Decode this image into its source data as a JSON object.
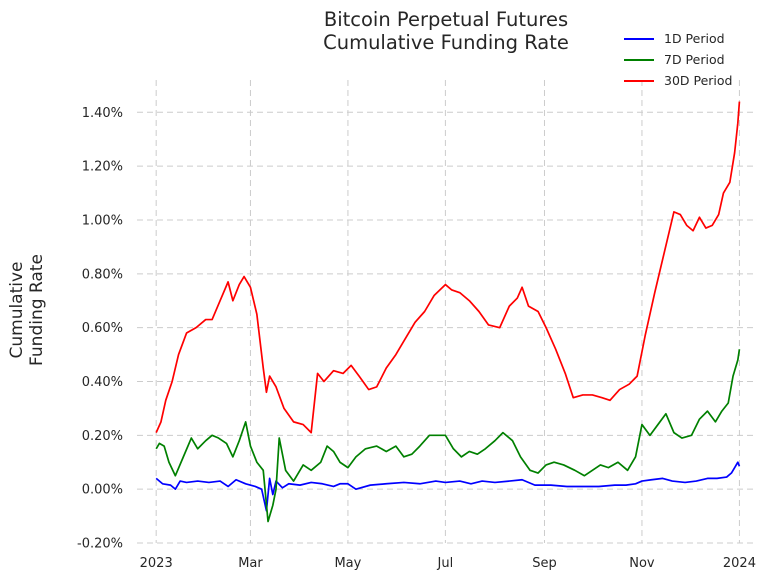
{
  "chart_data": {
    "type": "line",
    "title": [
      "Bitcoin Perpetual Futures",
      "Cumulative Funding Rate"
    ],
    "ylabel": [
      "Cumulative",
      "Funding Rate"
    ],
    "xlabel": "",
    "ylim": [
      -0.2,
      1.52
    ],
    "y_ticks": [
      -0.2,
      0.0,
      0.2,
      0.4,
      0.6,
      0.8,
      1.0,
      1.2,
      1.4
    ],
    "y_tick_labels": [
      "-0.20%",
      "0.00%",
      "0.20%",
      "0.40%",
      "0.60%",
      "0.80%",
      "1.00%",
      "1.20%",
      "1.40%"
    ],
    "x_tick_labels": [
      {
        "date": "2023-01-01",
        "label": "2023"
      },
      {
        "date": "2023-03-01",
        "label": "Mar"
      },
      {
        "date": "2023-05-01",
        "label": "May"
      },
      {
        "date": "2023-07-01",
        "label": "Jul"
      },
      {
        "date": "2023-09-01",
        "label": "Sep"
      },
      {
        "date": "2023-11-01",
        "label": "Nov"
      },
      {
        "date": "2024-01-01",
        "label": "2024"
      }
    ],
    "xlim": [
      "2022-12-20",
      "2024-01-12"
    ],
    "grid": true,
    "legend_position": "top-right",
    "series": [
      {
        "name": "1D Period",
        "color": "#0000ff",
        "points": [
          [
            "2023-01-01",
            0.04
          ],
          [
            "2023-01-05",
            0.02
          ],
          [
            "2023-01-10",
            0.015
          ],
          [
            "2023-01-13",
            0.0
          ],
          [
            "2023-01-16",
            0.03
          ],
          [
            "2023-01-20",
            0.025
          ],
          [
            "2023-01-27",
            0.03
          ],
          [
            "2023-02-03",
            0.025
          ],
          [
            "2023-02-10",
            0.03
          ],
          [
            "2023-02-15",
            0.01
          ],
          [
            "2023-02-20",
            0.035
          ],
          [
            "2023-02-26",
            0.02
          ],
          [
            "2023-03-04",
            0.01
          ],
          [
            "2023-03-08",
            0.0
          ],
          [
            "2023-03-11",
            -0.08
          ],
          [
            "2023-03-13",
            0.04
          ],
          [
            "2023-03-15",
            -0.02
          ],
          [
            "2023-03-17",
            0.03
          ],
          [
            "2023-03-21",
            0.005
          ],
          [
            "2023-03-25",
            0.02
          ],
          [
            "2023-04-01",
            0.015
          ],
          [
            "2023-04-08",
            0.025
          ],
          [
            "2023-04-15",
            0.02
          ],
          [
            "2023-04-22",
            0.01
          ],
          [
            "2023-04-26",
            0.02
          ],
          [
            "2023-05-01",
            0.02
          ],
          [
            "2023-05-06",
            0.0
          ],
          [
            "2023-05-15",
            0.015
          ],
          [
            "2023-05-25",
            0.02
          ],
          [
            "2023-06-05",
            0.025
          ],
          [
            "2023-06-15",
            0.02
          ],
          [
            "2023-06-25",
            0.03
          ],
          [
            "2023-07-01",
            0.025
          ],
          [
            "2023-07-10",
            0.03
          ],
          [
            "2023-07-17",
            0.02
          ],
          [
            "2023-07-24",
            0.03
          ],
          [
            "2023-08-01",
            0.025
          ],
          [
            "2023-08-10",
            0.03
          ],
          [
            "2023-08-18",
            0.035
          ],
          [
            "2023-08-26",
            0.015
          ],
          [
            "2023-09-05",
            0.015
          ],
          [
            "2023-09-15",
            0.01
          ],
          [
            "2023-09-25",
            0.01
          ],
          [
            "2023-10-05",
            0.01
          ],
          [
            "2023-10-15",
            0.015
          ],
          [
            "2023-10-22",
            0.015
          ],
          [
            "2023-10-28",
            0.02
          ],
          [
            "2023-11-01",
            0.03
          ],
          [
            "2023-11-07",
            0.035
          ],
          [
            "2023-11-14",
            0.04
          ],
          [
            "2023-11-20",
            0.03
          ],
          [
            "2023-11-28",
            0.025
          ],
          [
            "2023-12-05",
            0.03
          ],
          [
            "2023-12-12",
            0.04
          ],
          [
            "2023-12-18",
            0.04
          ],
          [
            "2023-12-24",
            0.045
          ],
          [
            "2023-12-27",
            0.06
          ],
          [
            "2023-12-29",
            0.08
          ],
          [
            "2023-12-31",
            0.1
          ],
          [
            "2024-01-01",
            0.085
          ]
        ]
      },
      {
        "name": "7D Period",
        "color": "#008000",
        "points": [
          [
            "2023-01-01",
            0.15
          ],
          [
            "2023-01-03",
            0.17
          ],
          [
            "2023-01-06",
            0.16
          ],
          [
            "2023-01-09",
            0.1
          ],
          [
            "2023-01-13",
            0.05
          ],
          [
            "2023-01-18",
            0.12
          ],
          [
            "2023-01-23",
            0.19
          ],
          [
            "2023-01-27",
            0.15
          ],
          [
            "2023-02-01",
            0.18
          ],
          [
            "2023-02-05",
            0.2
          ],
          [
            "2023-02-09",
            0.19
          ],
          [
            "2023-02-14",
            0.17
          ],
          [
            "2023-02-18",
            0.12
          ],
          [
            "2023-02-22",
            0.18
          ],
          [
            "2023-02-26",
            0.25
          ],
          [
            "2023-03-01",
            0.16
          ],
          [
            "2023-03-05",
            0.1
          ],
          [
            "2023-03-09",
            0.07
          ],
          [
            "2023-03-12",
            -0.12
          ],
          [
            "2023-03-15",
            -0.06
          ],
          [
            "2023-03-17",
            0.0
          ],
          [
            "2023-03-19",
            0.19
          ],
          [
            "2023-03-23",
            0.07
          ],
          [
            "2023-03-28",
            0.03
          ],
          [
            "2023-04-03",
            0.09
          ],
          [
            "2023-04-08",
            0.07
          ],
          [
            "2023-04-14",
            0.1
          ],
          [
            "2023-04-18",
            0.16
          ],
          [
            "2023-04-22",
            0.14
          ],
          [
            "2023-04-26",
            0.1
          ],
          [
            "2023-05-01",
            0.08
          ],
          [
            "2023-05-06",
            0.12
          ],
          [
            "2023-05-12",
            0.15
          ],
          [
            "2023-05-19",
            0.16
          ],
          [
            "2023-05-25",
            0.14
          ],
          [
            "2023-05-31",
            0.16
          ],
          [
            "2023-06-05",
            0.12
          ],
          [
            "2023-06-10",
            0.13
          ],
          [
            "2023-06-15",
            0.16
          ],
          [
            "2023-06-21",
            0.2
          ],
          [
            "2023-07-01",
            0.2
          ],
          [
            "2023-07-06",
            0.15
          ],
          [
            "2023-07-11",
            0.12
          ],
          [
            "2023-07-16",
            0.14
          ],
          [
            "2023-07-21",
            0.13
          ],
          [
            "2023-07-26",
            0.15
          ],
          [
            "2023-08-01",
            0.18
          ],
          [
            "2023-08-06",
            0.21
          ],
          [
            "2023-08-12",
            0.18
          ],
          [
            "2023-08-17",
            0.12
          ],
          [
            "2023-08-23",
            0.07
          ],
          [
            "2023-08-28",
            0.06
          ],
          [
            "2023-09-02",
            0.09
          ],
          [
            "2023-09-07",
            0.1
          ],
          [
            "2023-09-13",
            0.09
          ],
          [
            "2023-09-20",
            0.07
          ],
          [
            "2023-09-26",
            0.05
          ],
          [
            "2023-10-01",
            0.07
          ],
          [
            "2023-10-06",
            0.09
          ],
          [
            "2023-10-11",
            0.08
          ],
          [
            "2023-10-17",
            0.1
          ],
          [
            "2023-10-23",
            0.07
          ],
          [
            "2023-10-28",
            0.12
          ],
          [
            "2023-11-01",
            0.24
          ],
          [
            "2023-11-06",
            0.2
          ],
          [
            "2023-11-11",
            0.24
          ],
          [
            "2023-11-16",
            0.28
          ],
          [
            "2023-11-21",
            0.21
          ],
          [
            "2023-11-26",
            0.19
          ],
          [
            "2023-12-02",
            0.2
          ],
          [
            "2023-12-07",
            0.26
          ],
          [
            "2023-12-12",
            0.29
          ],
          [
            "2023-12-17",
            0.25
          ],
          [
            "2023-12-21",
            0.29
          ],
          [
            "2023-12-25",
            0.32
          ],
          [
            "2023-12-28",
            0.42
          ],
          [
            "2023-12-31",
            0.48
          ],
          [
            "2024-01-01",
            0.52
          ]
        ]
      },
      {
        "name": "30D Period",
        "color": "#ff0000",
        "points": [
          [
            "2023-01-01",
            0.21
          ],
          [
            "2023-01-04",
            0.25
          ],
          [
            "2023-01-07",
            0.33
          ],
          [
            "2023-01-11",
            0.4
          ],
          [
            "2023-01-15",
            0.5
          ],
          [
            "2023-01-20",
            0.58
          ],
          [
            "2023-01-26",
            0.6
          ],
          [
            "2023-02-01",
            0.63
          ],
          [
            "2023-02-05",
            0.63
          ],
          [
            "2023-02-10",
            0.7
          ],
          [
            "2023-02-15",
            0.77
          ],
          [
            "2023-02-18",
            0.7
          ],
          [
            "2023-02-22",
            0.76
          ],
          [
            "2023-02-25",
            0.79
          ],
          [
            "2023-03-01",
            0.75
          ],
          [
            "2023-03-05",
            0.65
          ],
          [
            "2023-03-09",
            0.45
          ],
          [
            "2023-03-11",
            0.36
          ],
          [
            "2023-03-13",
            0.42
          ],
          [
            "2023-03-17",
            0.38
          ],
          [
            "2023-03-22",
            0.3
          ],
          [
            "2023-03-28",
            0.25
          ],
          [
            "2023-04-03",
            0.24
          ],
          [
            "2023-04-08",
            0.21
          ],
          [
            "2023-04-12",
            0.43
          ],
          [
            "2023-04-16",
            0.4
          ],
          [
            "2023-04-22",
            0.44
          ],
          [
            "2023-04-28",
            0.43
          ],
          [
            "2023-05-03",
            0.46
          ],
          [
            "2023-05-08",
            0.42
          ],
          [
            "2023-05-14",
            0.37
          ],
          [
            "2023-05-19",
            0.38
          ],
          [
            "2023-05-25",
            0.45
          ],
          [
            "2023-05-31",
            0.5
          ],
          [
            "2023-06-05",
            0.55
          ],
          [
            "2023-06-12",
            0.62
          ],
          [
            "2023-06-18",
            0.66
          ],
          [
            "2023-06-24",
            0.72
          ],
          [
            "2023-07-01",
            0.76
          ],
          [
            "2023-07-05",
            0.74
          ],
          [
            "2023-07-10",
            0.73
          ],
          [
            "2023-07-16",
            0.7
          ],
          [
            "2023-07-22",
            0.66
          ],
          [
            "2023-07-28",
            0.61
          ],
          [
            "2023-08-04",
            0.6
          ],
          [
            "2023-08-10",
            0.68
          ],
          [
            "2023-08-15",
            0.71
          ],
          [
            "2023-08-18",
            0.75
          ],
          [
            "2023-08-22",
            0.68
          ],
          [
            "2023-08-28",
            0.66
          ],
          [
            "2023-09-02",
            0.6
          ],
          [
            "2023-09-08",
            0.52
          ],
          [
            "2023-09-14",
            0.43
          ],
          [
            "2023-09-19",
            0.34
          ],
          [
            "2023-09-25",
            0.35
          ],
          [
            "2023-10-01",
            0.35
          ],
          [
            "2023-10-07",
            0.34
          ],
          [
            "2023-10-12",
            0.33
          ],
          [
            "2023-10-18",
            0.37
          ],
          [
            "2023-10-24",
            0.39
          ],
          [
            "2023-10-29",
            0.42
          ],
          [
            "2023-11-03",
            0.57
          ],
          [
            "2023-11-09",
            0.73
          ],
          [
            "2023-11-15",
            0.88
          ],
          [
            "2023-11-21",
            1.03
          ],
          [
            "2023-11-25",
            1.02
          ],
          [
            "2023-11-29",
            0.98
          ],
          [
            "2023-12-03",
            0.96
          ],
          [
            "2023-12-07",
            1.01
          ],
          [
            "2023-12-11",
            0.97
          ],
          [
            "2023-12-15",
            0.98
          ],
          [
            "2023-12-19",
            1.02
          ],
          [
            "2023-12-22",
            1.1
          ],
          [
            "2023-12-26",
            1.14
          ],
          [
            "2023-12-29",
            1.25
          ],
          [
            "2023-12-31",
            1.36
          ],
          [
            "2024-01-01",
            1.44
          ]
        ]
      }
    ]
  }
}
